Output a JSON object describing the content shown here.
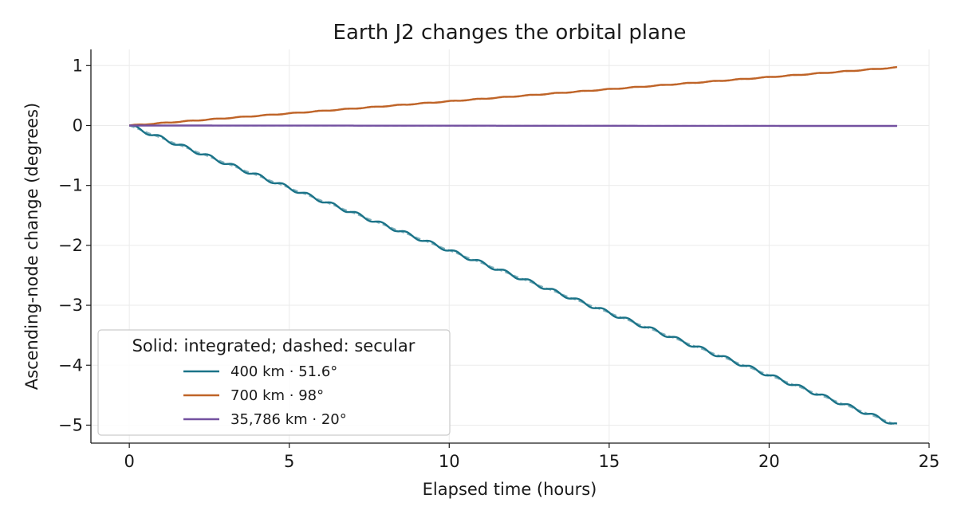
{
  "chart_data": {
    "type": "line",
    "title": "Earth J2 changes the orbital plane",
    "xlabel": "Elapsed time (hours)",
    "ylabel": "Ascending-node change (degrees)",
    "xlim": [
      -1.2,
      25.0
    ],
    "ylim": [
      -5.3,
      1.27
    ],
    "xticks": [
      0,
      5,
      10,
      15,
      20,
      25
    ],
    "xtick_labels": [
      "0",
      "5",
      "10",
      "15",
      "20",
      "25"
    ],
    "yticks": [
      1,
      0,
      -1,
      -2,
      -3,
      -4,
      -5
    ],
    "ytick_labels": [
      "1",
      "0",
      "−1",
      "−2",
      "−3",
      "−4",
      "−5"
    ],
    "grid": true,
    "legend": {
      "title": "Solid: integrated; dashed: secular",
      "placement": "lower-left"
    },
    "series": [
      {
        "name": "400 km · 51.6°",
        "color": "#1b7388",
        "secular_rate_deg_per_hour": -0.2083,
        "t_start": 0,
        "t_end": 24,
        "start_value": 0,
        "end_value": -5.0,
        "oscillation_period_hours": 0.77,
        "oscillation_amplitude_deg": 0.03
      },
      {
        "name": "700 km · 98°",
        "color": "#bf6428",
        "secular_rate_deg_per_hour": 0.0404,
        "t_start": 0,
        "t_end": 24,
        "start_value": 0,
        "end_value": 0.97,
        "oscillation_period_hours": 0.82,
        "oscillation_amplitude_deg": 0.006
      },
      {
        "name": "35,786 km · 20°",
        "color": "#7351a0",
        "secular_rate_deg_per_hour": -0.0003,
        "t_start": 0,
        "t_end": 24,
        "start_value": 0,
        "end_value": -0.007,
        "oscillation_period_hours": 24,
        "oscillation_amplitude_deg": 0.0
      }
    ]
  }
}
